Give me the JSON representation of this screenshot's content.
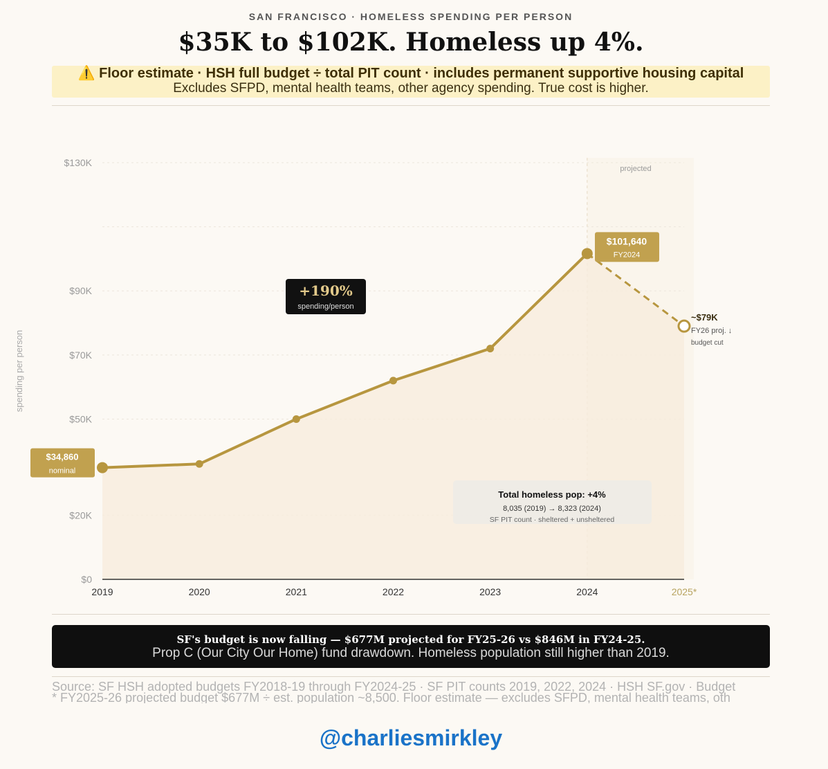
{
  "header": {
    "kicker": "SAN FRANCISCO · HOMELESS SPENDING PER PERSON",
    "headline": "$35K to $102K. Homeless up 4%.",
    "warning_line1": "⚠️ Floor estimate · HSH full budget ÷ total PIT count · includes permanent supportive housing capital",
    "warning_line2": "Excludes SFPD, mental health teams, other agency spending. True cost is higher."
  },
  "chart_data": {
    "type": "line",
    "ylabel": "spending per person",
    "ylim": [
      0,
      130000
    ],
    "y_ticks": [
      {
        "value": 0,
        "label": "$0"
      },
      {
        "value": 20000,
        "label": "$20K"
      },
      {
        "value": 50000,
        "label": "$50K"
      },
      {
        "value": 70000,
        "label": "$70K"
      },
      {
        "value": 90000,
        "label": "$90K"
      },
      {
        "value": 130000,
        "label": "$130K"
      }
    ],
    "categories": [
      "2019",
      "2020",
      "2021",
      "2022",
      "2023",
      "2024",
      "2025*"
    ],
    "values": [
      34860,
      36000,
      50000,
      62000,
      72000,
      101640,
      79000
    ],
    "projected_from_index": 5,
    "projected_label": "projected",
    "colors": {
      "line": "#b7963f",
      "area": "#f7ecdd",
      "projected_bg": "#faf5ec",
      "label_bg": "#c1a14f"
    },
    "annotations": {
      "start_value": "$34,860",
      "start_sub": "nominal",
      "peak_value": "$101,640",
      "peak_sub": "FY2024",
      "change_value": "+190%",
      "change_sub": "spending/person",
      "proj_value": "~$79K",
      "proj_sub1": "FY26 proj. ↓",
      "proj_sub2": "budget cut",
      "pop_title": "Total homeless pop: +4%",
      "pop_line1": "8,035 (2019) → 8,323 (2024)",
      "pop_line2": "SF PIT count · sheltered + unsheltered"
    }
  },
  "footer": {
    "bold_line": "SF's budget is now falling — $677M projected for FY25-26 vs $846M in FY24-25.",
    "sub_line": "Prop C (Our City Our Home) fund drawdown. Homeless population still higher than 2019.",
    "source_line1": "Source: SF HSH adopted budgets FY2018-19 through FY2024-25 · SF PIT counts 2019, 2022, 2024 · HSH SF.gov · Budget",
    "source_line2": "* FY2025-26 projected budget $677M ÷ est. population ~8,500. Floor estimate — excludes SFPD, mental health teams, oth",
    "handle": "@charliesmirkley"
  }
}
